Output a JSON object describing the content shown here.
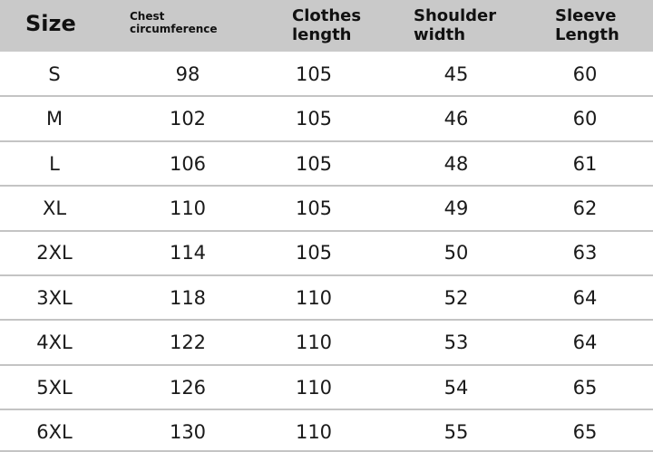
{
  "table": {
    "header": [
      "Size",
      "Chest circumference",
      "Clothes length",
      "Shoulder width",
      "Sleeve Length"
    ],
    "rows": [
      [
        "S",
        "98",
        "105",
        "45",
        "60"
      ],
      [
        "M",
        "102",
        "105",
        "46",
        "60"
      ],
      [
        "L",
        "106",
        "105",
        "48",
        "61"
      ],
      [
        "XL",
        "110",
        "105",
        "49",
        "62"
      ],
      [
        "2XL",
        "114",
        "105",
        "50",
        "63"
      ],
      [
        "3XL",
        "118",
        "110",
        "52",
        "64"
      ],
      [
        "4XL",
        "122",
        "110",
        "53",
        "64"
      ],
      [
        "5XL",
        "126",
        "110",
        "54",
        "65"
      ],
      [
        "6XL",
        "130",
        "110",
        "55",
        "65"
      ]
    ]
  }
}
